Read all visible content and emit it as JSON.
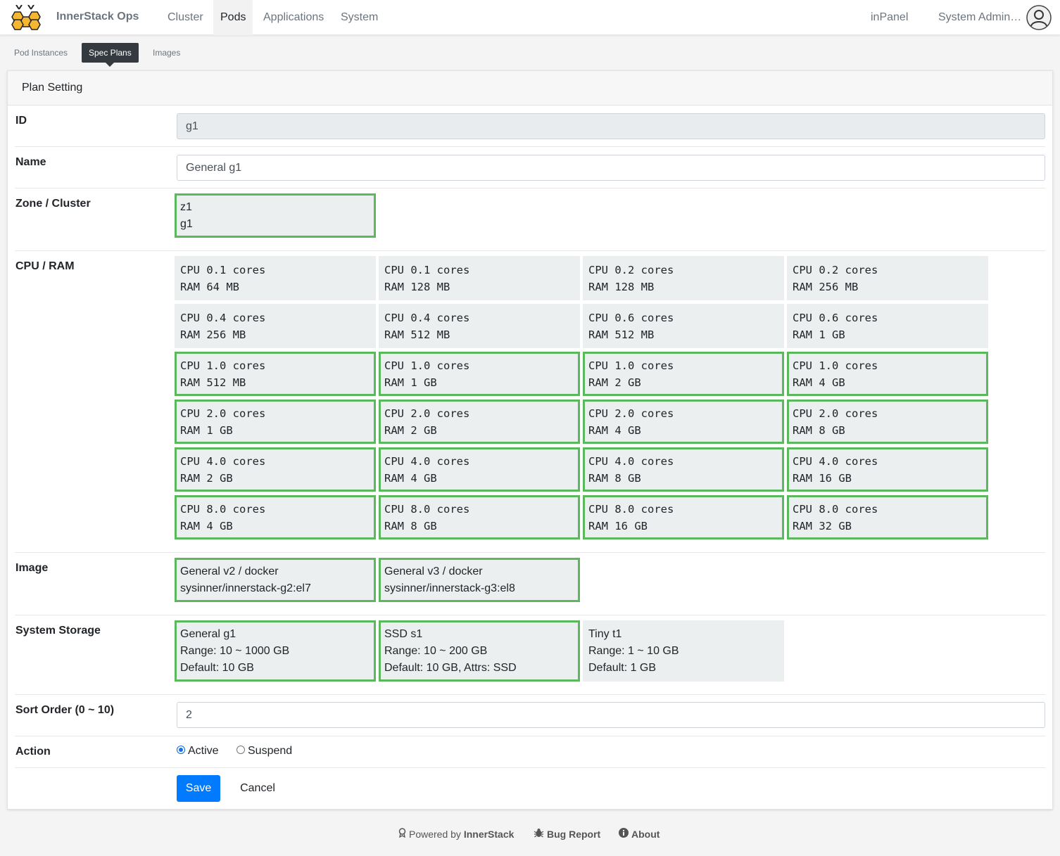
{
  "brand": {
    "name": "InnerStack Ops"
  },
  "nav": {
    "items": [
      "Cluster",
      "Pods",
      "Applications",
      "System"
    ],
    "active": "Pods",
    "right_link": "inPanel",
    "user": "System Admin…"
  },
  "subnav": {
    "items": [
      "Pod Instances",
      "Spec Plans",
      "Images"
    ],
    "active": "Spec Plans"
  },
  "card": {
    "title": "Plan Setting"
  },
  "form": {
    "id": {
      "label": "ID",
      "value": "g1"
    },
    "name": {
      "label": "Name",
      "value": "General g1"
    },
    "zone": {
      "label": "Zone / Cluster",
      "zone": "z1",
      "cluster": "g1",
      "selected": true
    },
    "cpu_ram": {
      "label": "CPU / RAM",
      "options": [
        {
          "cpu": "CPU 0.1 cores",
          "ram": "RAM 64 MB",
          "selected": false
        },
        {
          "cpu": "CPU 0.1 cores",
          "ram": "RAM 128 MB",
          "selected": false
        },
        {
          "cpu": "CPU 0.2 cores",
          "ram": "RAM 128 MB",
          "selected": false
        },
        {
          "cpu": "CPU 0.2 cores",
          "ram": "RAM 256 MB",
          "selected": false
        },
        {
          "cpu": "CPU 0.4 cores",
          "ram": "RAM 256 MB",
          "selected": false
        },
        {
          "cpu": "CPU 0.4 cores",
          "ram": "RAM 512 MB",
          "selected": false
        },
        {
          "cpu": "CPU 0.6 cores",
          "ram": "RAM 512 MB",
          "selected": false
        },
        {
          "cpu": "CPU 0.6 cores",
          "ram": "RAM 1 GB",
          "selected": false
        },
        {
          "cpu": "CPU 1.0 cores",
          "ram": "RAM 512 MB",
          "selected": true
        },
        {
          "cpu": "CPU 1.0 cores",
          "ram": "RAM 1 GB",
          "selected": true
        },
        {
          "cpu": "CPU 1.0 cores",
          "ram": "RAM 2 GB",
          "selected": true
        },
        {
          "cpu": "CPU 1.0 cores",
          "ram": "RAM 4 GB",
          "selected": true
        },
        {
          "cpu": "CPU 2.0 cores",
          "ram": "RAM 1 GB",
          "selected": true
        },
        {
          "cpu": "CPU 2.0 cores",
          "ram": "RAM 2 GB",
          "selected": true
        },
        {
          "cpu": "CPU 2.0 cores",
          "ram": "RAM 4 GB",
          "selected": true
        },
        {
          "cpu": "CPU 2.0 cores",
          "ram": "RAM 8 GB",
          "selected": true
        },
        {
          "cpu": "CPU 4.0 cores",
          "ram": "RAM 2 GB",
          "selected": true
        },
        {
          "cpu": "CPU 4.0 cores",
          "ram": "RAM 4 GB",
          "selected": true
        },
        {
          "cpu": "CPU 4.0 cores",
          "ram": "RAM 8 GB",
          "selected": true
        },
        {
          "cpu": "CPU 4.0 cores",
          "ram": "RAM 16 GB",
          "selected": true
        },
        {
          "cpu": "CPU 8.0 cores",
          "ram": "RAM 4 GB",
          "selected": true
        },
        {
          "cpu": "CPU 8.0 cores",
          "ram": "RAM 8 GB",
          "selected": true
        },
        {
          "cpu": "CPU 8.0 cores",
          "ram": "RAM 16 GB",
          "selected": true
        },
        {
          "cpu": "CPU 8.0 cores",
          "ram": "RAM 32 GB",
          "selected": true
        }
      ]
    },
    "image": {
      "label": "Image",
      "options": [
        {
          "line1": "General v2 / docker",
          "line2": "sysinner/innerstack-g2:el7",
          "selected": true
        },
        {
          "line1": "General v3 / docker",
          "line2": "sysinner/innerstack-g3:el8",
          "selected": true
        }
      ]
    },
    "storage": {
      "label": "System Storage",
      "options": [
        {
          "name": "General g1",
          "range": "Range: 10 ~ 1000 GB",
          "default": "Default: 10 GB",
          "selected": true
        },
        {
          "name": "SSD s1",
          "range": "Range: 10 ~ 200 GB",
          "default": "Default: 10 GB, Attrs: SSD",
          "selected": true
        },
        {
          "name": "Tiny t1",
          "range": "Range: 1 ~ 10 GB",
          "default": "Default: 1 GB",
          "selected": false
        }
      ]
    },
    "sort_order": {
      "label": "Sort Order (0 ~ 10)",
      "value": "2"
    },
    "action": {
      "label": "Action",
      "options": [
        "Active",
        "Suspend"
      ],
      "selected": "Active"
    },
    "save_label": "Save",
    "cancel_label": "Cancel"
  },
  "footer": {
    "powered_prefix": "Powered by",
    "powered_brand": "InnerStack",
    "bug_report": "Bug Report",
    "about": "About"
  },
  "colors": {
    "selected_border": "#5cb85c",
    "primary": "#007bff",
    "option_bg": "#ebefef"
  },
  "icons": [
    "logo-icon",
    "user-avatar-icon",
    "award-icon",
    "bug-icon",
    "info-icon"
  ]
}
